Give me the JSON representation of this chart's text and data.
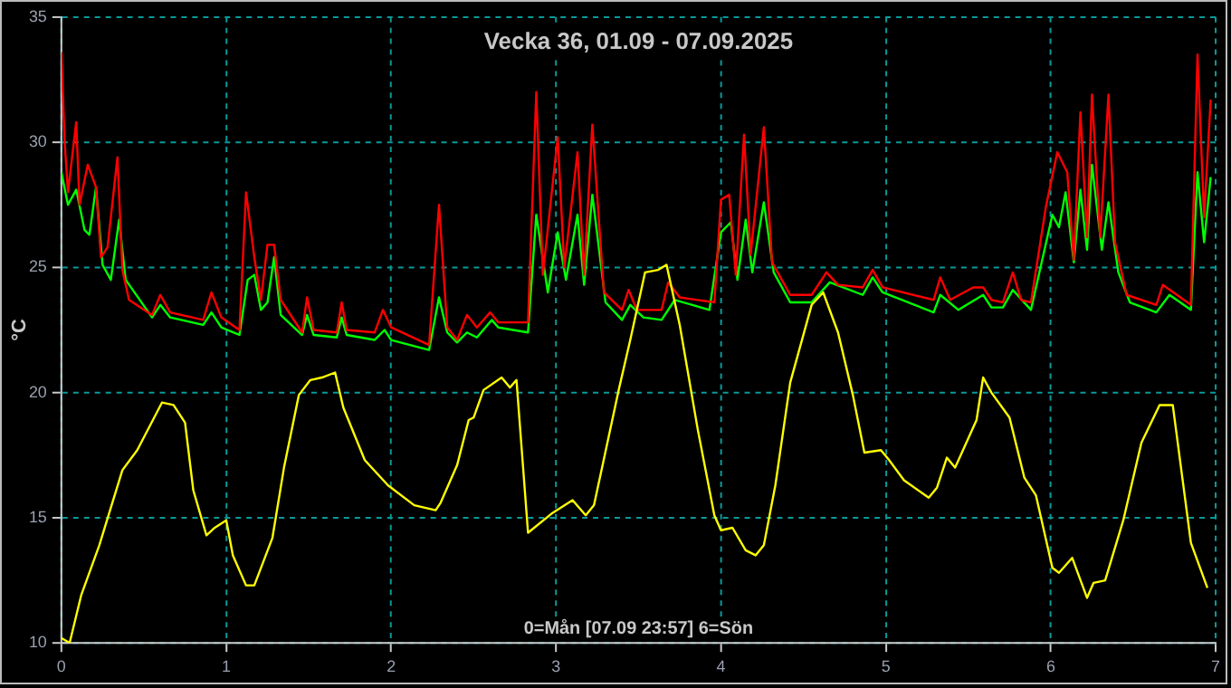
{
  "chart_data": {
    "type": "line",
    "title": "Vecka 36, 01.09 - 07.09.2025",
    "xlabel": "0=Mån [07.09 23:57] 6=Sön",
    "ylabel": "°C",
    "xlim": [
      0,
      7
    ],
    "xticks": [
      0,
      1,
      2,
      3,
      4,
      5,
      6,
      7
    ],
    "ylim": [
      10,
      35
    ],
    "yticks": [
      10,
      15,
      20,
      25,
      30,
      35
    ],
    "grid": true,
    "legend": false,
    "marker": "none",
    "line_style": "solid",
    "series": [
      {
        "color": "#ffff00",
        "x": [
          0,
          0.05,
          0.12,
          0.23,
          0.37,
          0.46,
          0.61,
          0.68,
          0.75,
          0.8,
          0.88,
          0.93,
          1.0,
          1.04,
          1.12,
          1.17,
          1.28,
          1.35,
          1.44,
          1.51,
          1.58,
          1.66,
          1.71,
          1.84,
          1.98,
          2.14,
          2.27,
          2.3,
          2.4,
          2.47,
          2.5,
          2.56,
          2.67,
          2.72,
          2.76,
          2.83,
          2.98,
          3.1,
          3.18,
          3.23,
          3.38,
          3.45,
          3.54,
          3.62,
          3.67,
          3.75,
          3.86,
          3.96,
          4.0,
          4.07,
          4.15,
          4.21,
          4.26,
          4.33,
          4.42,
          4.55,
          4.62,
          4.71,
          4.8,
          4.87,
          4.97,
          5.02,
          5.11,
          5.26,
          5.31,
          5.37,
          5.42,
          5.55,
          5.59,
          5.64,
          5.75,
          5.84,
          5.91,
          6.01,
          6.05,
          6.13,
          6.22,
          6.26,
          6.33,
          6.44,
          6.55,
          6.66,
          6.74,
          6.85,
          6.95
        ],
        "values": [
          10.2,
          10.0,
          11.9,
          13.9,
          16.9,
          17.7,
          19.6,
          19.5,
          18.8,
          16.1,
          14.3,
          14.6,
          14.9,
          13.5,
          12.3,
          12.3,
          14.2,
          17.0,
          19.9,
          20.5,
          20.6,
          20.8,
          19.4,
          17.3,
          16.3,
          15.5,
          15.3,
          15.6,
          17.1,
          18.9,
          19.0,
          20.1,
          20.6,
          20.2,
          20.5,
          14.4,
          15.2,
          15.7,
          15.1,
          15.5,
          20.1,
          22.1,
          24.8,
          24.9,
          25.1,
          22.7,
          18.5,
          15.1,
          14.5,
          14.6,
          13.7,
          13.5,
          13.9,
          16.3,
          20.4,
          23.5,
          24.0,
          22.4,
          19.9,
          17.6,
          17.7,
          17.3,
          16.5,
          15.8,
          16.2,
          17.4,
          17.0,
          18.9,
          20.6,
          20.0,
          19.0,
          16.6,
          15.9,
          13.0,
          12.8,
          13.4,
          11.8,
          12.4,
          12.5,
          14.9,
          18.0,
          19.5,
          19.5,
          14.0,
          12.2
        ]
      },
      {
        "color": "#ff0000",
        "x": [
          0,
          0.02,
          0.04,
          0.09,
          0.11,
          0.16,
          0.21,
          0.24,
          0.28,
          0.34,
          0.37,
          0.41,
          0.55,
          0.6,
          0.66,
          0.86,
          0.91,
          0.97,
          1.08,
          1.12,
          1.17,
          1.21,
          1.25,
          1.29,
          1.33,
          1.46,
          1.49,
          1.53,
          1.67,
          1.7,
          1.73,
          1.9,
          1.95,
          2.0,
          2.23,
          2.29,
          2.34,
          2.4,
          2.46,
          2.52,
          2.6,
          2.65,
          2.83,
          2.88,
          2.92,
          3.01,
          3.05,
          3.13,
          3.17,
          3.22,
          3.29,
          3.4,
          3.44,
          3.49,
          3.64,
          3.68,
          3.75,
          3.96,
          4.0,
          4.05,
          4.09,
          4.14,
          4.18,
          4.26,
          4.31,
          4.42,
          4.55,
          4.64,
          4.71,
          4.86,
          4.92,
          4.98,
          5.29,
          5.33,
          5.39,
          5.53,
          5.59,
          5.64,
          5.71,
          5.77,
          5.82,
          5.88,
          5.97,
          6.04,
          6.1,
          6.14,
          6.18,
          6.22,
          6.25,
          6.3,
          6.35,
          6.39,
          6.46,
          6.64,
          6.68,
          6.85,
          6.89,
          6.93,
          6.97
        ],
        "values": [
          33.6,
          30.0,
          28.0,
          30.8,
          27.5,
          29.1,
          28.2,
          25.4,
          25.8,
          29.4,
          24.9,
          23.7,
          23.1,
          23.9,
          23.2,
          22.9,
          24.0,
          23.0,
          22.5,
          28.0,
          25.4,
          23.7,
          25.9,
          25.9,
          23.7,
          22.4,
          23.8,
          22.5,
          22.4,
          23.6,
          22.5,
          22.4,
          23.3,
          22.6,
          21.9,
          27.5,
          22.6,
          22.1,
          23.1,
          22.6,
          23.2,
          22.8,
          22.8,
          32.0,
          24.7,
          30.2,
          25.0,
          29.6,
          24.7,
          30.7,
          24.0,
          23.3,
          24.1,
          23.3,
          23.3,
          24.4,
          23.8,
          23.6,
          27.7,
          27.9,
          24.7,
          30.3,
          25.5,
          30.6,
          25.2,
          23.9,
          23.9,
          24.8,
          24.3,
          24.2,
          24.9,
          24.2,
          23.7,
          24.6,
          23.7,
          24.2,
          24.2,
          23.7,
          23.6,
          24.8,
          23.7,
          23.6,
          27.4,
          29.6,
          28.8,
          25.3,
          31.2,
          26.2,
          31.9,
          26.2,
          31.9,
          26.0,
          23.9,
          23.5,
          24.3,
          23.5,
          33.5,
          27.0,
          31.7
        ]
      },
      {
        "color": "#00ff00",
        "x": [
          0,
          0.04,
          0.09,
          0.14,
          0.17,
          0.21,
          0.25,
          0.3,
          0.35,
          0.39,
          0.55,
          0.6,
          0.66,
          0.86,
          0.91,
          0.97,
          1.08,
          1.13,
          1.17,
          1.21,
          1.25,
          1.29,
          1.33,
          1.46,
          1.49,
          1.53,
          1.67,
          1.7,
          1.73,
          1.9,
          1.96,
          2.0,
          2.23,
          2.29,
          2.34,
          2.4,
          2.46,
          2.52,
          2.61,
          2.65,
          2.83,
          2.88,
          2.95,
          3.01,
          3.06,
          3.13,
          3.17,
          3.22,
          3.3,
          3.4,
          3.45,
          3.53,
          3.64,
          3.72,
          3.93,
          4.0,
          4.06,
          4.1,
          4.15,
          4.19,
          4.26,
          4.32,
          4.42,
          4.55,
          4.66,
          4.86,
          4.92,
          4.98,
          5.29,
          5.33,
          5.44,
          5.59,
          5.64,
          5.71,
          5.77,
          5.88,
          6.01,
          6.05,
          6.09,
          6.14,
          6.18,
          6.22,
          6.25,
          6.31,
          6.35,
          6.41,
          6.48,
          6.64,
          6.72,
          6.85,
          6.89,
          6.93,
          6.97
        ],
        "values": [
          28.8,
          27.5,
          28.1,
          26.5,
          26.3,
          28.2,
          25.1,
          24.5,
          26.9,
          24.5,
          23.0,
          23.5,
          23.0,
          22.7,
          23.2,
          22.6,
          22.3,
          24.5,
          24.7,
          23.3,
          23.6,
          25.4,
          23.1,
          22.3,
          23.1,
          22.3,
          22.2,
          23.0,
          22.3,
          22.1,
          22.5,
          22.1,
          21.7,
          23.8,
          22.4,
          22.0,
          22.4,
          22.2,
          22.9,
          22.6,
          22.4,
          27.1,
          24.0,
          26.4,
          24.5,
          27.1,
          24.3,
          27.9,
          23.6,
          22.9,
          23.5,
          23.0,
          22.9,
          23.7,
          23.3,
          26.4,
          26.8,
          24.5,
          26.9,
          24.8,
          27.6,
          24.8,
          23.6,
          23.6,
          24.4,
          23.9,
          24.6,
          24.0,
          23.2,
          23.9,
          23.3,
          23.9,
          23.4,
          23.4,
          24.1,
          23.3,
          27.1,
          26.6,
          28.0,
          25.2,
          28.1,
          25.7,
          29.1,
          25.7,
          27.6,
          24.8,
          23.6,
          23.2,
          23.9,
          23.3,
          28.8,
          26.0,
          28.6
        ]
      }
    ]
  }
}
